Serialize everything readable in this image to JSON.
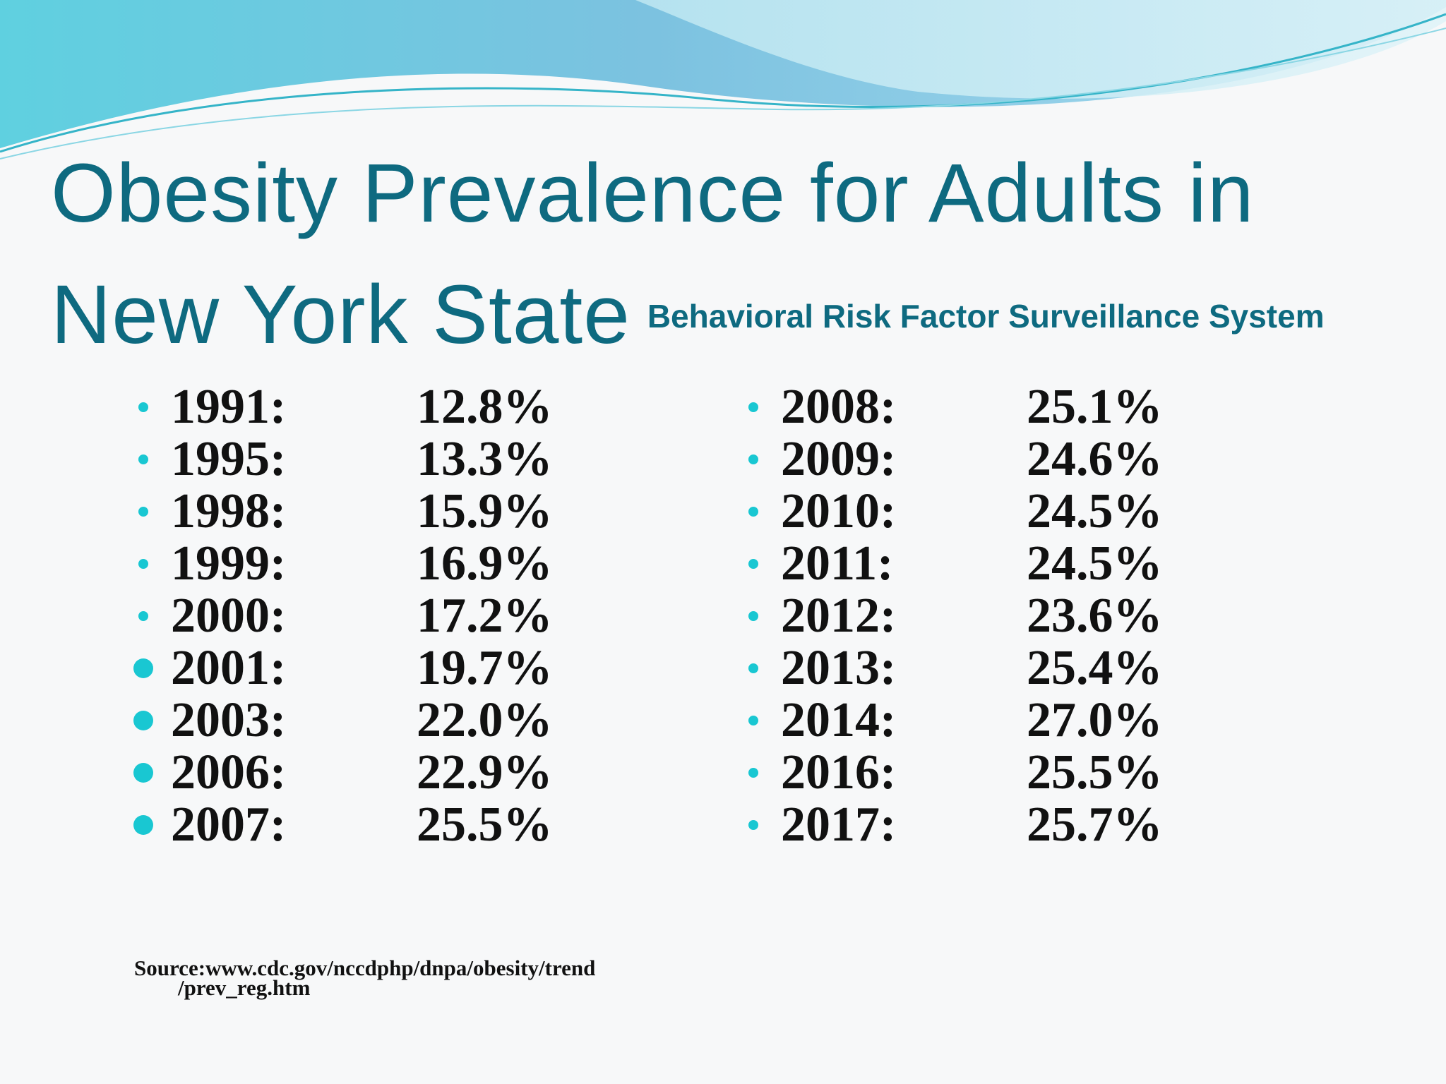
{
  "slide": {
    "title_line1": "Obesity Prevalence for Adults in",
    "title_line2": "New York State",
    "subtitle": "Behavioral Risk Factor Surveillance System",
    "source_line1": "Source:www.cdc.gov/nccdphp/dnpa/obesity/trend",
    "source_line2": "/prev_reg.htm"
  },
  "left_list": [
    {
      "year": "1991:",
      "value": "12.8%"
    },
    {
      "year": "1995:",
      "value": "13.3%"
    },
    {
      "year": "1998:",
      "value": "15.9%"
    },
    {
      "year": "1999:",
      "value": "16.9%"
    },
    {
      "year": "2000:",
      "value": "17.2%"
    },
    {
      "year": "2001:",
      "value": "19.7%"
    },
    {
      "year": "2003:",
      "value": "22.0%"
    },
    {
      "year": "2006:",
      "value": "22.9%"
    },
    {
      "year": "2007:",
      "value": "25.5%"
    }
  ],
  "right_list": [
    {
      "year": "2008:",
      "value": "25.1%"
    },
    {
      "year": "2009:",
      "value": "24.6%"
    },
    {
      "year": "2010:",
      "value": "24.5%"
    },
    {
      "year": "2011:",
      "value": "24.5%"
    },
    {
      "year": "2012:",
      "value": "23.6%"
    },
    {
      "year": "2013:",
      "value": "25.4%"
    },
    {
      "year": "2014:",
      "value": "27.0%"
    },
    {
      "year": "2016:",
      "value": "25.5%"
    },
    {
      "year": "2017:",
      "value": "25.7%"
    }
  ],
  "colors": {
    "title": "#0e6a80",
    "bullet": "#19c7d2",
    "text": "#111111"
  }
}
